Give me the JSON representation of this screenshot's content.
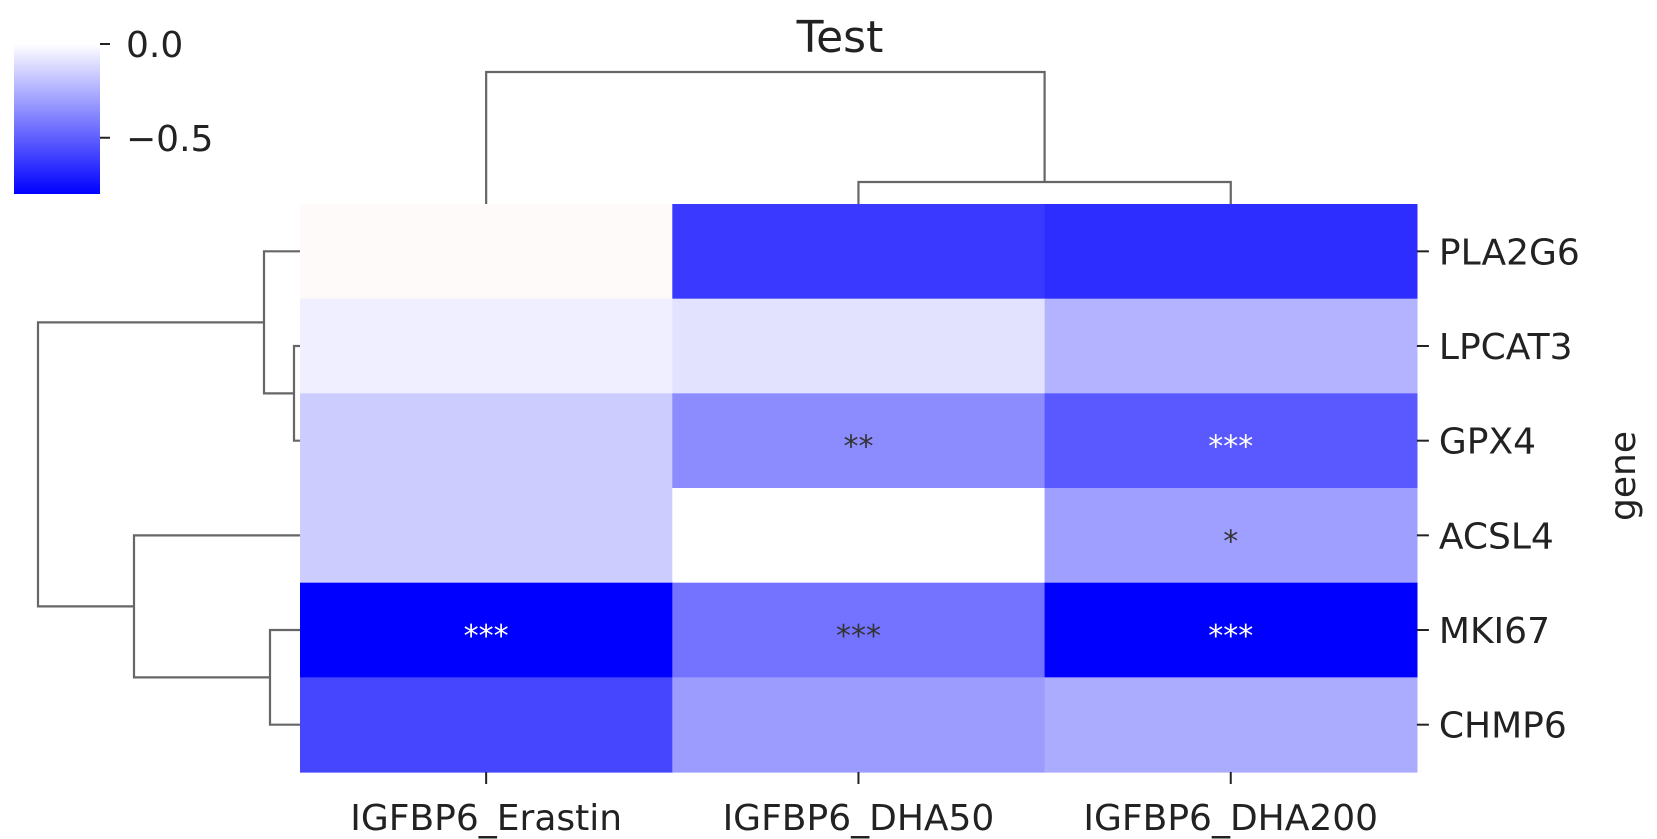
{
  "chart_data": {
    "type": "heatmap",
    "title": "Test",
    "xlabel": "",
    "ylabel": "gene",
    "columns": [
      "IGFBP6_Erastin",
      "IGFBP6_DHA50",
      "IGFBP6_DHA200"
    ],
    "rows": [
      "PLA2G6",
      "LPCAT3",
      "GPX4",
      "ACSL4",
      "MKI67",
      "CHMP6"
    ],
    "values": [
      [
        0.01,
        -0.62,
        -0.66
      ],
      [
        -0.05,
        -0.09,
        -0.24
      ],
      [
        -0.16,
        -0.36,
        -0.52
      ],
      [
        -0.16,
        0.0,
        -0.3
      ],
      [
        -0.8,
        -0.44,
        -0.9
      ],
      [
        -0.58,
        -0.31,
        -0.26
      ]
    ],
    "annotations": [
      [
        "",
        "",
        ""
      ],
      [
        "",
        "",
        ""
      ],
      [
        "",
        "**",
        "***"
      ],
      [
        "",
        "",
        "*"
      ],
      [
        "***",
        "***",
        "***"
      ],
      [
        "",
        "",
        ""
      ]
    ],
    "colorbar": {
      "ticks": [
        0.0,
        -0.5
      ],
      "tick_labels": [
        "0.0",
        "−0.5"
      ],
      "range": [
        -0.8,
        0.0
      ],
      "color_low": "#0000ff",
      "color_high": "#ffffff"
    },
    "dendrograms": {
      "rows": true,
      "columns": true
    }
  }
}
